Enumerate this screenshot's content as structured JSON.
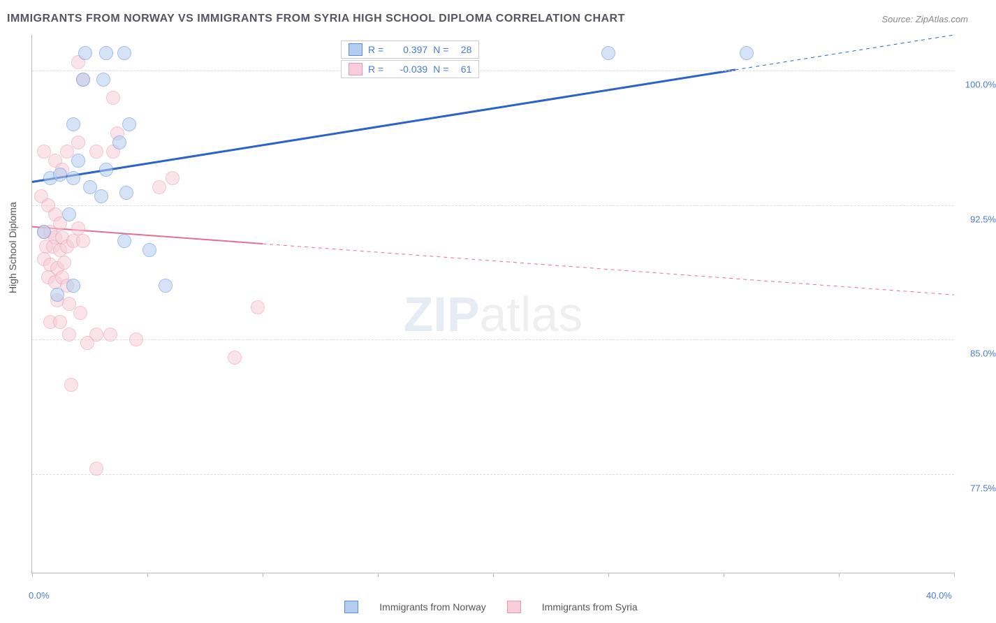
{
  "title": "IMMIGRANTS FROM NORWAY VS IMMIGRANTS FROM SYRIA HIGH SCHOOL DIPLOMA CORRELATION CHART",
  "source": "Source: ZipAtlas.com",
  "ylabel": "High School Diploma",
  "watermark_a": "ZIP",
  "watermark_b": "atlas",
  "chart": {
    "type": "scatter-with-regression",
    "background_color": "#ffffff",
    "grid_color": "#dddddd",
    "border_color": "#bbbbbb",
    "xlim": [
      0.0,
      40.0
    ],
    "ylim": [
      72.0,
      102.0
    ],
    "xticks": [
      {
        "v": 0,
        "label": "0.0%"
      },
      {
        "v": 40,
        "label": "40.0%"
      }
    ],
    "xtick_marks": [
      0,
      5,
      10,
      15,
      20,
      25,
      30,
      35,
      40
    ],
    "yticks": [
      {
        "v": 77.5,
        "label": "77.5%"
      },
      {
        "v": 85.0,
        "label": "85.0%"
      },
      {
        "v": 92.5,
        "label": "92.5%"
      },
      {
        "v": 100.0,
        "label": "100.0%"
      }
    ],
    "series_blue": {
      "name": "Immigrants from Norway",
      "color_fill": "#b3cdf0",
      "color_stroke": "#5b8ed6",
      "line_color": "#2b63c9",
      "line_width": 3,
      "r": "0.397",
      "n": "28",
      "marker_radius": 9,
      "regression": {
        "x1": 0,
        "y1": 93.8,
        "x2": 40,
        "y2": 102.0,
        "solid_x_end": 30.5
      },
      "points": [
        {
          "x": 2.3,
          "y": 101.0
        },
        {
          "x": 3.2,
          "y": 101.0
        },
        {
          "x": 4.0,
          "y": 101.0
        },
        {
          "x": 2.2,
          "y": 99.5
        },
        {
          "x": 3.1,
          "y": 99.5
        },
        {
          "x": 1.8,
          "y": 97.0
        },
        {
          "x": 4.2,
          "y": 97.0
        },
        {
          "x": 3.8,
          "y": 96.0
        },
        {
          "x": 0.8,
          "y": 94.0
        },
        {
          "x": 1.2,
          "y": 94.2
        },
        {
          "x": 1.8,
          "y": 94.0
        },
        {
          "x": 2.5,
          "y": 93.5
        },
        {
          "x": 3.2,
          "y": 94.5
        },
        {
          "x": 3.0,
          "y": 93.0
        },
        {
          "x": 4.1,
          "y": 93.2
        },
        {
          "x": 0.5,
          "y": 91.0
        },
        {
          "x": 4.0,
          "y": 90.5
        },
        {
          "x": 5.1,
          "y": 90.0
        },
        {
          "x": 1.8,
          "y": 88.0
        },
        {
          "x": 5.8,
          "y": 88.0
        },
        {
          "x": 1.1,
          "y": 87.5
        },
        {
          "x": 2.0,
          "y": 95.0
        },
        {
          "x": 1.6,
          "y": 92.0
        },
        {
          "x": 25.0,
          "y": 101.0
        },
        {
          "x": 31.0,
          "y": 101.0
        }
      ]
    },
    "series_pink": {
      "name": "Immigrants from Syria",
      "color_fill": "#f6cdd8",
      "color_stroke": "#e79ab0",
      "line_color": "#e86e8f",
      "line_width": 2,
      "r": "-0.039",
      "n": "61",
      "marker_radius": 9,
      "regression": {
        "x1": 0,
        "y1": 91.3,
        "x2": 40,
        "y2": 87.5,
        "solid_x_end": 10.0
      },
      "points": [
        {
          "x": 0.5,
          "y": 95.5
        },
        {
          "x": 1.0,
          "y": 95.0
        },
        {
          "x": 1.5,
          "y": 95.5
        },
        {
          "x": 1.3,
          "y": 94.5
        },
        {
          "x": 2.0,
          "y": 96.0
        },
        {
          "x": 2.8,
          "y": 95.5
        },
        {
          "x": 3.5,
          "y": 95.5
        },
        {
          "x": 3.7,
          "y": 96.5
        },
        {
          "x": 2.0,
          "y": 100.5
        },
        {
          "x": 2.2,
          "y": 99.5
        },
        {
          "x": 3.5,
          "y": 98.5
        },
        {
          "x": 5.5,
          "y": 93.5
        },
        {
          "x": 6.1,
          "y": 94.0
        },
        {
          "x": 0.4,
          "y": 93.0
        },
        {
          "x": 0.7,
          "y": 92.5
        },
        {
          "x": 1.0,
          "y": 92.0
        },
        {
          "x": 1.2,
          "y": 91.5
        },
        {
          "x": 0.5,
          "y": 91.0
        },
        {
          "x": 0.8,
          "y": 91.0
        },
        {
          "x": 1.0,
          "y": 90.7
        },
        {
          "x": 1.3,
          "y": 90.7
        },
        {
          "x": 0.6,
          "y": 90.2
        },
        {
          "x": 0.9,
          "y": 90.2
        },
        {
          "x": 1.2,
          "y": 90.0
        },
        {
          "x": 1.5,
          "y": 90.2
        },
        {
          "x": 1.8,
          "y": 90.5
        },
        {
          "x": 2.2,
          "y": 90.5
        },
        {
          "x": 2.0,
          "y": 91.2
        },
        {
          "x": 0.5,
          "y": 89.5
        },
        {
          "x": 0.8,
          "y": 89.2
        },
        {
          "x": 1.1,
          "y": 89.0
        },
        {
          "x": 1.4,
          "y": 89.3
        },
        {
          "x": 0.7,
          "y": 88.5
        },
        {
          "x": 1.0,
          "y": 88.2
        },
        {
          "x": 1.3,
          "y": 88.5
        },
        {
          "x": 1.5,
          "y": 88.0
        },
        {
          "x": 1.1,
          "y": 87.2
        },
        {
          "x": 1.6,
          "y": 87.0
        },
        {
          "x": 2.1,
          "y": 86.5
        },
        {
          "x": 0.8,
          "y": 86.0
        },
        {
          "x": 1.2,
          "y": 86.0
        },
        {
          "x": 1.6,
          "y": 85.3
        },
        {
          "x": 2.8,
          "y": 85.3
        },
        {
          "x": 3.4,
          "y": 85.3
        },
        {
          "x": 4.5,
          "y": 85.0
        },
        {
          "x": 2.4,
          "y": 84.8
        },
        {
          "x": 9.8,
          "y": 86.8
        },
        {
          "x": 8.8,
          "y": 84.0
        },
        {
          "x": 1.7,
          "y": 82.5
        },
        {
          "x": 2.8,
          "y": 77.8
        }
      ]
    }
  },
  "corr_labels": {
    "r_label": "R =",
    "n_label": "N ="
  },
  "legend": {
    "item1": "Immigrants from Norway",
    "item2": "Immigrants from Syria"
  }
}
